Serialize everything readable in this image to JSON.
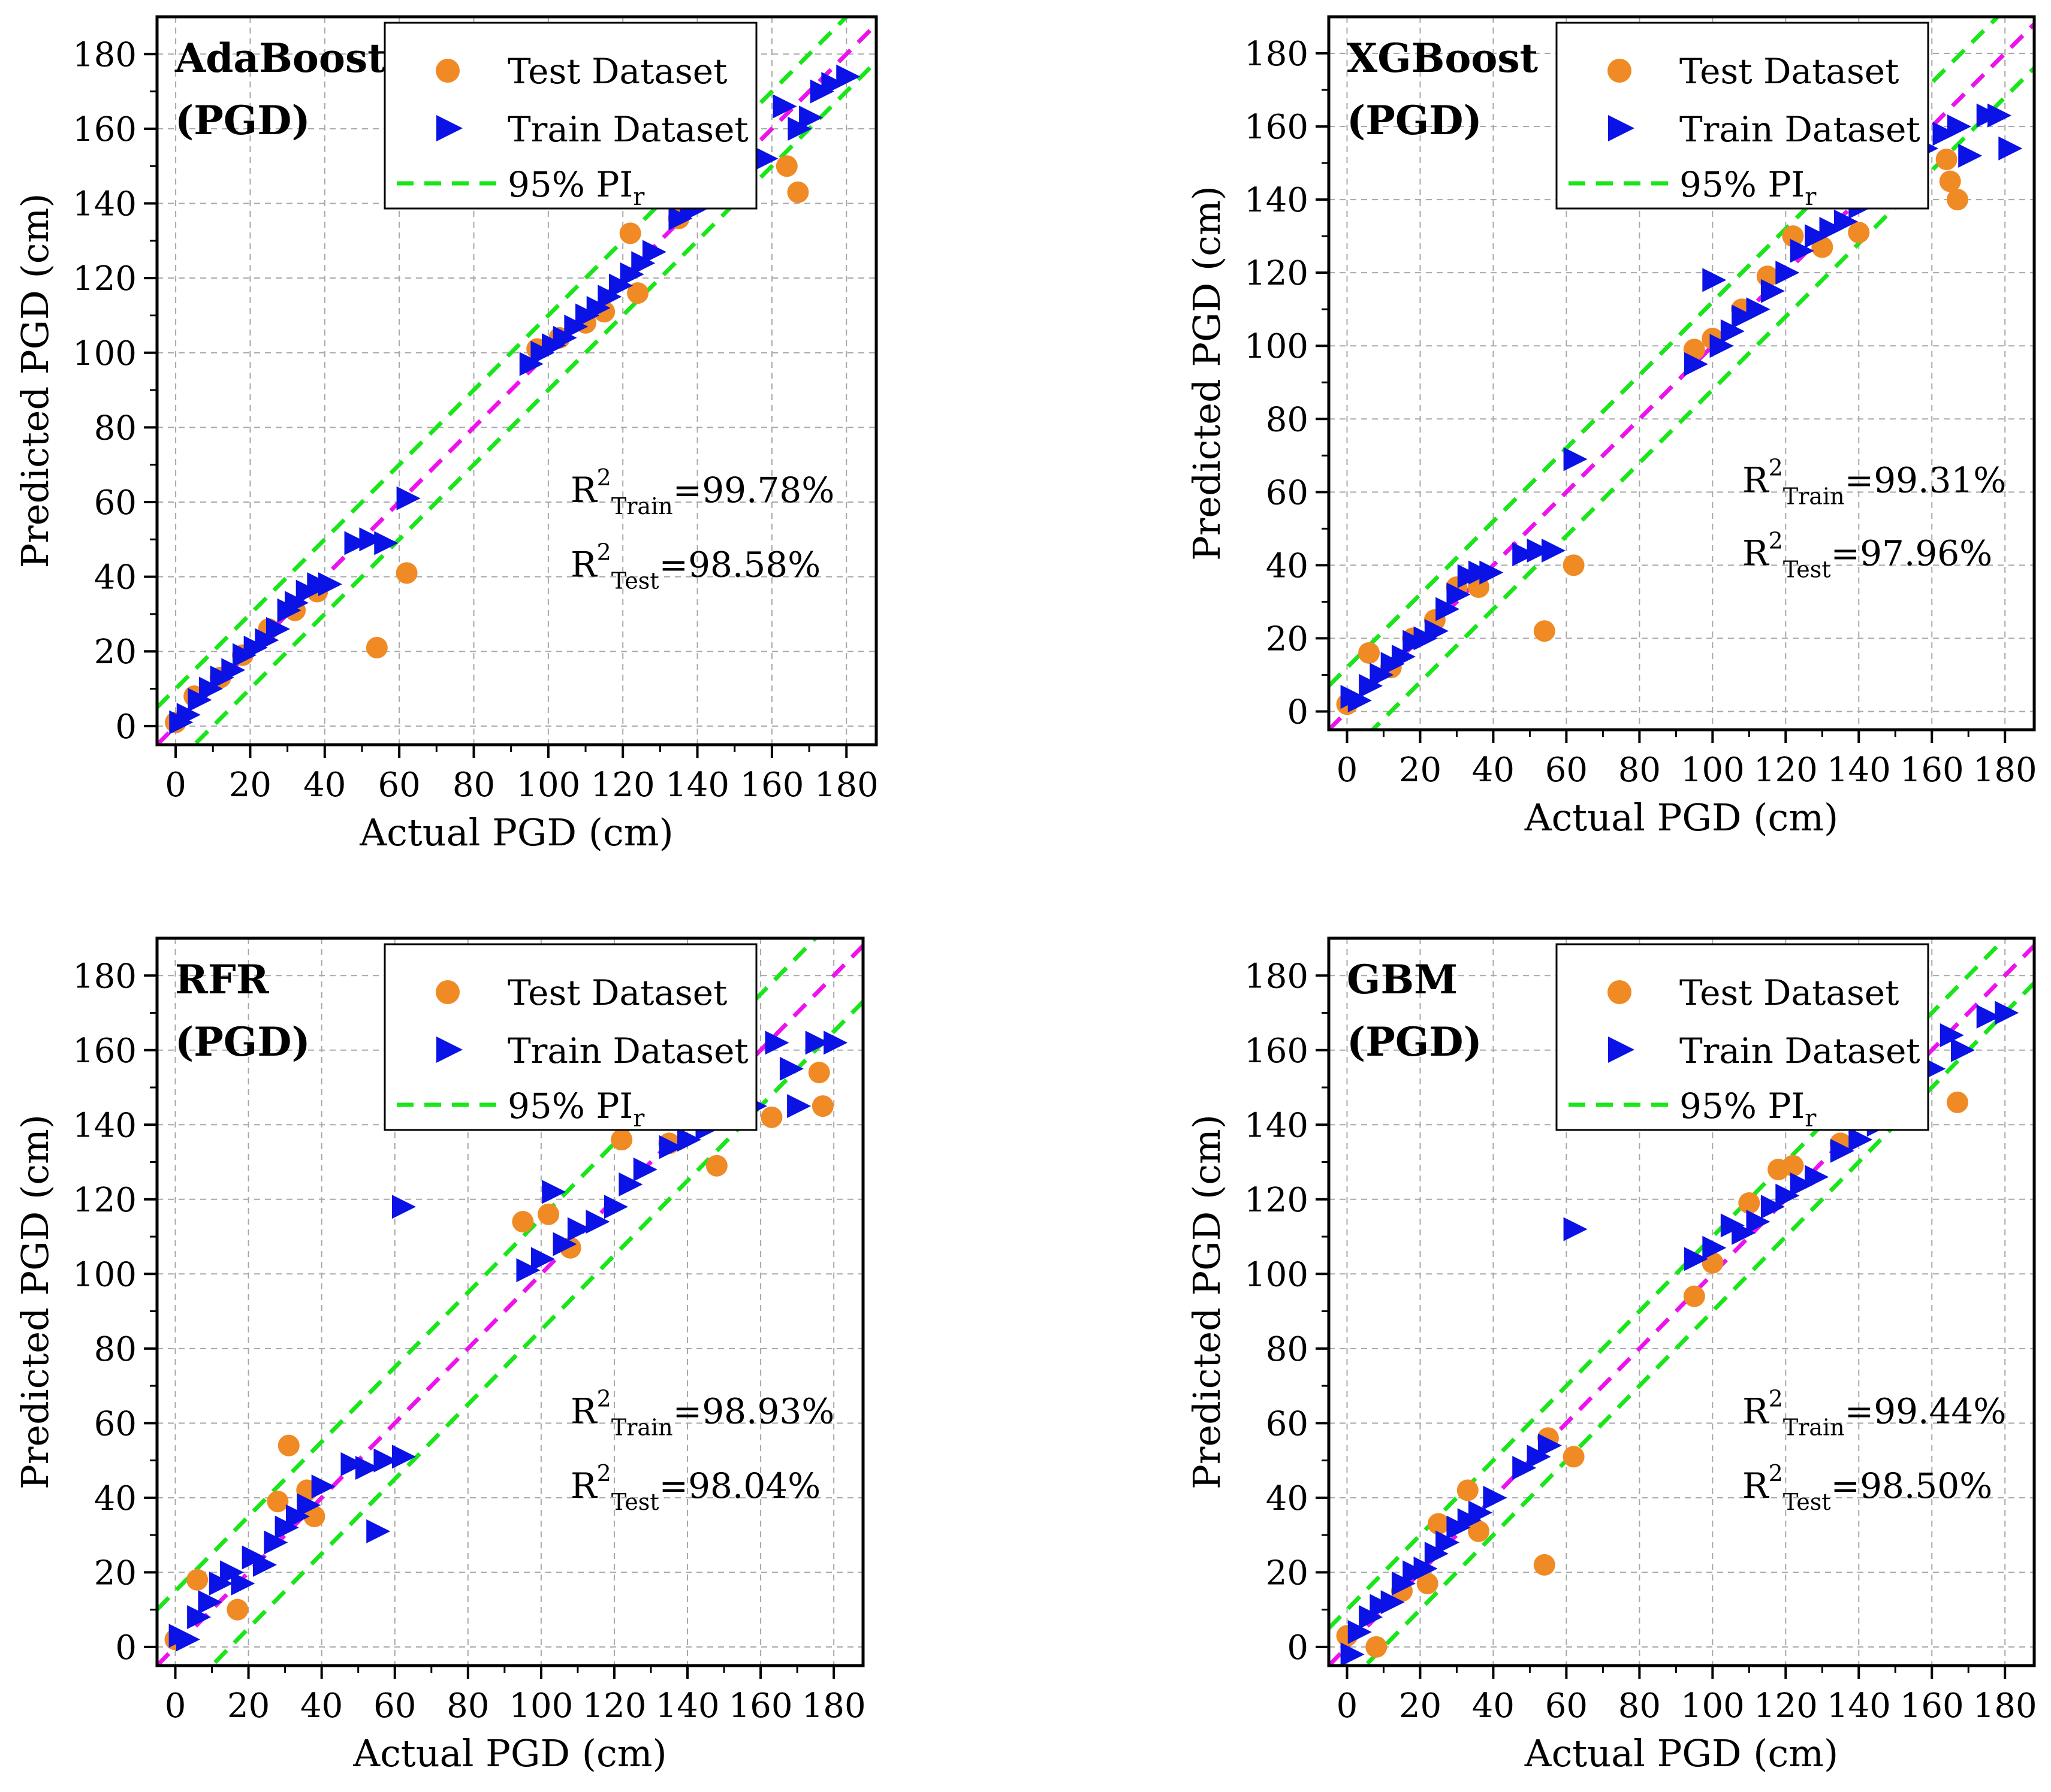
{
  "chart_data": [
    {
      "type": "scatter",
      "title": "AdaBoost",
      "subtitle": "(PGD)",
      "xlabel": "Actual PGD (cm)",
      "ylabel": "Predicted PGD (cm)",
      "xlim": [
        -5,
        188
      ],
      "ylim": [
        -5,
        190
      ],
      "xticks": [
        0,
        20,
        40,
        60,
        80,
        100,
        120,
        140,
        160,
        180
      ],
      "yticks": [
        0,
        20,
        40,
        60,
        80,
        100,
        120,
        140,
        160,
        180
      ],
      "tick_labels": [
        "0",
        "20",
        "40",
        "60",
        "80",
        "100",
        "120",
        "140",
        "160",
        "180"
      ],
      "grid": true,
      "legend": {
        "position": "top-center",
        "entries": [
          "Test Dataset",
          "Train Dataset",
          "95% PI",
          "r"
        ]
      },
      "pi_offset": 10,
      "r2": {
        "train_label": "R",
        "train_sup": "2",
        "train_sub": "Train",
        "train_value": "=99.78%",
        "test_label": "R",
        "test_sup": "2",
        "test_sub": "Test",
        "test_value": "=98.58%"
      },
      "series": [
        {
          "name": "Test Dataset",
          "color": "#f08a24",
          "marker": "circle",
          "x": [
            0,
            5,
            12,
            18,
            25,
            32,
            38,
            54,
            62,
            97,
            103,
            110,
            115,
            122,
            124,
            135,
            164,
            167
          ],
          "y": [
            1,
            8,
            13,
            19,
            26,
            31,
            36,
            21,
            41,
            101,
            104,
            108,
            111,
            132,
            116,
            136,
            150,
            143
          ]
        },
        {
          "name": "Train Dataset",
          "color": "#0a12e6",
          "marker": "triangle-right",
          "x": [
            1,
            3,
            6,
            9,
            12,
            15,
            18,
            21,
            24,
            27,
            30,
            32,
            35,
            38,
            41,
            48,
            52,
            56,
            62,
            95,
            98,
            101,
            104,
            107,
            110,
            113,
            116,
            119,
            122,
            125,
            128,
            135,
            138,
            140,
            145,
            150,
            155,
            158,
            163,
            167,
            170,
            173,
            176,
            180
          ],
          "y": [
            1,
            3,
            7,
            10,
            13,
            15,
            19,
            21,
            23,
            26,
            31,
            33,
            36,
            38,
            38,
            49,
            50,
            49,
            61,
            97,
            100,
            102,
            104,
            107,
            110,
            112,
            115,
            118,
            121,
            124,
            127,
            136,
            138,
            139,
            143,
            149,
            153,
            152,
            166,
            160,
            163,
            170,
            172,
            174
          ]
        }
      ]
    },
    {
      "type": "scatter",
      "title": "XGBoost",
      "subtitle": "(PGD)",
      "xlabel": "Actual PGD (cm)",
      "ylabel": "Predicted PGD (cm)",
      "xlim": [
        -5,
        188
      ],
      "ylim": [
        -5,
        190
      ],
      "xticks": [
        0,
        20,
        40,
        60,
        80,
        100,
        120,
        140,
        160,
        180
      ],
      "yticks": [
        0,
        20,
        40,
        60,
        80,
        100,
        120,
        140,
        160,
        180
      ],
      "tick_labels": [
        "0",
        "20",
        "40",
        "60",
        "80",
        "100",
        "120",
        "140",
        "160",
        "180"
      ],
      "grid": true,
      "legend": {
        "position": "top-center",
        "entries": [
          "Test Dataset",
          "Train Dataset",
          "95% PI",
          "r"
        ]
      },
      "pi_offset": 12,
      "r2": {
        "train_label": "R",
        "train_sup": "2",
        "train_sub": "Train",
        "train_value": "=99.31%",
        "test_label": "R",
        "test_sup": "2",
        "test_sub": "Test",
        "test_value": "=97.96%"
      },
      "series": [
        {
          "name": "Test Dataset",
          "color": "#f08a24",
          "marker": "circle",
          "x": [
            0,
            6,
            12,
            18,
            24,
            30,
            36,
            54,
            62,
            95,
            100,
            108,
            115,
            122,
            130,
            140,
            164,
            165,
            167
          ],
          "y": [
            2,
            16,
            12,
            20,
            25,
            34,
            34,
            22,
            40,
            99,
            102,
            110,
            119,
            130,
            127,
            131,
            151,
            145,
            140
          ]
        },
        {
          "name": "Train Dataset",
          "color": "#0a12e6",
          "marker": "triangle-right",
          "x": [
            1,
            3,
            6,
            9,
            12,
            15,
            18,
            21,
            24,
            27,
            30,
            33,
            36,
            39,
            48,
            52,
            56,
            62,
            95,
            100,
            102,
            105,
            108,
            112,
            116,
            120,
            124,
            128,
            132,
            136,
            140,
            145,
            150,
            158,
            163,
            167,
            170,
            175,
            178,
            181
          ],
          "y": [
            4,
            3,
            7,
            10,
            13,
            15,
            19,
            20,
            22,
            28,
            32,
            37,
            38,
            38,
            43,
            44,
            44,
            69,
            95,
            118,
            100,
            104,
            108,
            110,
            115,
            120,
            126,
            130,
            132,
            134,
            138,
            143,
            148,
            154,
            158,
            160,
            152,
            163,
            163,
            154
          ]
        }
      ]
    },
    {
      "type": "scatter",
      "title": "RFR",
      "subtitle": "(PGD)",
      "xlabel": "Actual PGD (cm)",
      "ylabel": "Predicted PGD (cm)",
      "xlim": [
        -5,
        188
      ],
      "ylim": [
        -5,
        190
      ],
      "xticks": [
        0,
        20,
        40,
        60,
        80,
        100,
        120,
        140,
        160,
        180
      ],
      "yticks": [
        0,
        20,
        40,
        60,
        80,
        100,
        120,
        140,
        160,
        180
      ],
      "tick_labels": [
        "0",
        "20",
        "40",
        "60",
        "80",
        "100",
        "120",
        "140",
        "160",
        "180"
      ],
      "grid": true,
      "legend": {
        "position": "top-center",
        "entries": [
          "Test Dataset",
          "Train Dataset",
          "95% PI",
          "r"
        ]
      },
      "pi_offset": 15,
      "r2": {
        "train_label": "R",
        "train_sup": "2",
        "train_sub": "Train",
        "train_value": "=98.93%",
        "test_label": "R",
        "test_sup": "2",
        "test_sub": "Test",
        "test_value": "=98.04%"
      },
      "series": [
        {
          "name": "Test Dataset",
          "color": "#f08a24",
          "marker": "circle",
          "x": [
            0,
            6,
            17,
            28,
            31,
            36,
            38,
            95,
            102,
            108,
            122,
            135,
            148,
            150,
            163,
            176,
            177
          ],
          "y": [
            2,
            18,
            10,
            39,
            54,
            42,
            35,
            114,
            116,
            107,
            136,
            135,
            129,
            158,
            142,
            154,
            145
          ],
          "extra": null
        },
        {
          "name": "Train Dataset",
          "color": "#0a12e6",
          "marker": "triangle-right",
          "x": [
            1,
            3,
            6,
            9,
            12,
            15,
            18,
            21,
            24,
            27,
            30,
            33,
            36,
            40,
            48,
            52,
            55,
            57,
            62,
            62,
            96,
            100,
            103,
            106,
            110,
            115,
            120,
            124,
            128,
            135,
            140,
            145,
            152,
            158,
            164,
            168,
            170,
            175,
            180
          ],
          "y": [
            3,
            2,
            8,
            12,
            17,
            20,
            17,
            24,
            22,
            28,
            32,
            35,
            38,
            43,
            49,
            48,
            31,
            50,
            51,
            118,
            101,
            104,
            122,
            108,
            112,
            114,
            118,
            124,
            128,
            134,
            136,
            139,
            146,
            145,
            162,
            155,
            145,
            162,
            162
          ]
        }
      ]
    },
    {
      "type": "scatter",
      "title": "GBM",
      "subtitle": "(PGD)",
      "xlabel": "Actual PGD (cm)",
      "ylabel": "Predicted PGD (cm)",
      "xlim": [
        -5,
        188
      ],
      "ylim": [
        -5,
        190
      ],
      "xticks": [
        0,
        20,
        40,
        60,
        80,
        100,
        120,
        140,
        160,
        180
      ],
      "yticks": [
        0,
        20,
        40,
        60,
        80,
        100,
        120,
        140,
        160,
        180
      ],
      "tick_labels": [
        "0",
        "20",
        "40",
        "60",
        "80",
        "100",
        "120",
        "140",
        "160",
        "180"
      ],
      "grid": true,
      "legend": {
        "position": "top-center",
        "entries": [
          "Test Dataset",
          "Train Dataset",
          "95% PI",
          "r"
        ]
      },
      "pi_offset": 10,
      "r2": {
        "train_label": "R",
        "train_sup": "2",
        "train_sub": "Train",
        "train_value": "=99.44%",
        "test_label": "R",
        "test_sup": "2",
        "test_sub": "Test",
        "test_value": "=98.50%"
      },
      "series": [
        {
          "name": "Test Dataset",
          "color": "#f08a24",
          "marker": "circle",
          "x": [
            0,
            8,
            15,
            22,
            25,
            33,
            36,
            54,
            55,
            62,
            95,
            100,
            110,
            118,
            122,
            135,
            167
          ],
          "y": [
            3,
            0,
            15,
            17,
            33,
            42,
            31,
            22,
            56,
            51,
            94,
            103,
            119,
            128,
            129,
            135,
            146
          ]
        },
        {
          "name": "Train Dataset",
          "color": "#0a12e6",
          "marker": "triangle-right",
          "x": [
            1,
            3,
            6,
            9,
            12,
            15,
            18,
            21,
            24,
            27,
            30,
            33,
            36,
            40,
            48,
            52,
            55,
            62,
            95,
            100,
            105,
            108,
            112,
            116,
            120,
            124,
            128,
            135,
            140,
            145,
            155,
            160,
            165,
            168,
            175,
            180
          ],
          "y": [
            -2,
            4,
            8,
            11,
            12,
            17,
            20,
            21,
            25,
            28,
            32,
            34,
            36,
            40,
            48,
            51,
            54,
            112,
            104,
            107,
            113,
            111,
            114,
            118,
            121,
            124,
            126,
            133,
            136,
            140,
            152,
            155,
            164,
            160,
            169,
            170
          ]
        }
      ]
    }
  ]
}
